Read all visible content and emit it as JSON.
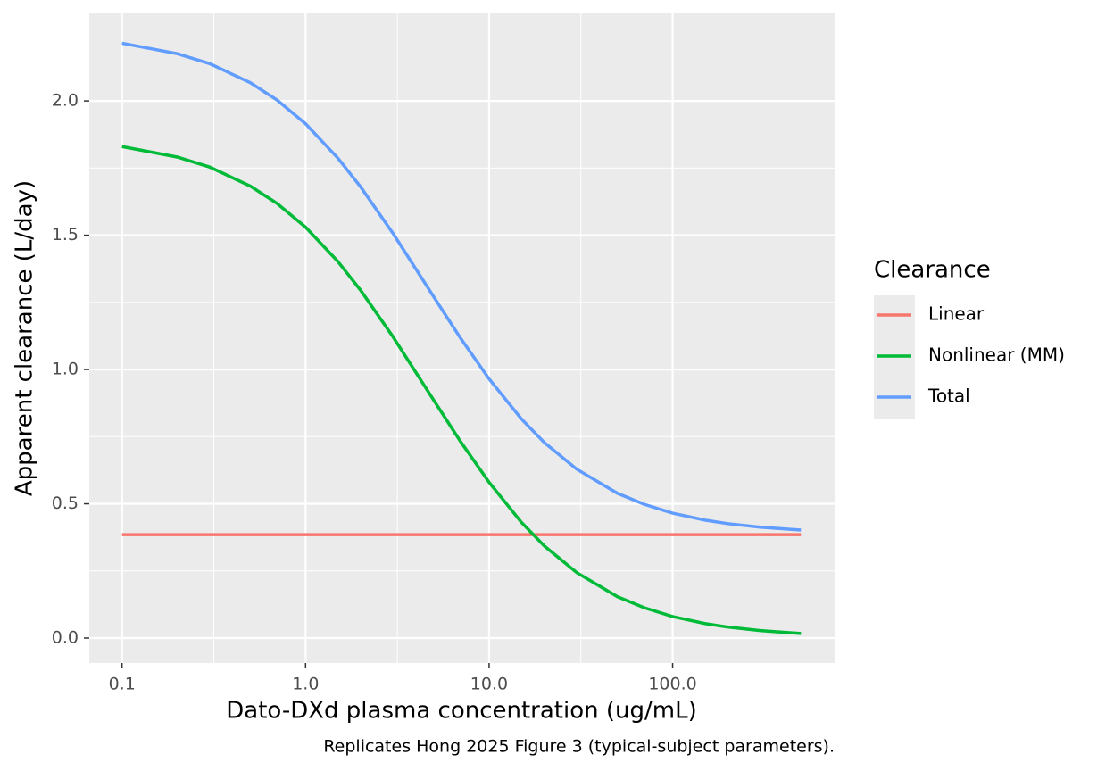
{
  "chart_data": {
    "type": "line",
    "xlabel": "Dato-DXd plasma concentration (ug/mL)",
    "ylabel": "Apparent clearance (L/day)",
    "caption": "Replicates Hong 2025 Figure 3 (typical-subject parameters).",
    "legend_title": "Clearance",
    "x": [
      0.1,
      0.2,
      0.3,
      0.5,
      0.7,
      1,
      1.5,
      2,
      3,
      5,
      7,
      10,
      15,
      20,
      30,
      50,
      70,
      100,
      150,
      200,
      300,
      500
    ],
    "series": [
      {
        "name": "Linear",
        "color": "#F8766D",
        "values": [
          0.385,
          0.385,
          0.385,
          0.385,
          0.385,
          0.385,
          0.385,
          0.385,
          0.385,
          0.385,
          0.385,
          0.385,
          0.385,
          0.385,
          0.385,
          0.385,
          0.385,
          0.385,
          0.385,
          0.385,
          0.385,
          0.385
        ]
      },
      {
        "name": "Nonlinear (MM)",
        "color": "#00BA38",
        "values": [
          1.83,
          1.791,
          1.754,
          1.683,
          1.618,
          1.53,
          1.402,
          1.294,
          1.121,
          0.885,
          0.731,
          0.58,
          0.431,
          0.343,
          0.244,
          0.154,
          0.113,
          0.08,
          0.054,
          0.041,
          0.028,
          0.017
        ]
      },
      {
        "name": "Total",
        "color": "#619CFF",
        "values": [
          2.215,
          2.176,
          2.139,
          2.068,
          2.003,
          1.915,
          1.787,
          1.679,
          1.506,
          1.27,
          1.116,
          0.965,
          0.816,
          0.728,
          0.629,
          0.539,
          0.498,
          0.465,
          0.439,
          0.426,
          0.413,
          0.402
        ]
      }
    ],
    "xscale": "log",
    "xlim": [
      0.0663,
      763
    ],
    "xticks": [
      0.1,
      {
        "value": 1,
        "label": "1.0"
      },
      {
        "value": 10,
        "label": "10.0"
      },
      {
        "value": 100,
        "label": "100.0"
      }
    ],
    "ylim": [
      -0.093,
      2.326
    ],
    "yticks": [
      {
        "value": 0,
        "label": "0.0"
      },
      0.5,
      {
        "value": 1,
        "label": "1.0"
      },
      1.5,
      {
        "value": 2,
        "label": "2.0"
      }
    ],
    "grid": true,
    "minor_grid": true,
    "legend_position": "right"
  }
}
